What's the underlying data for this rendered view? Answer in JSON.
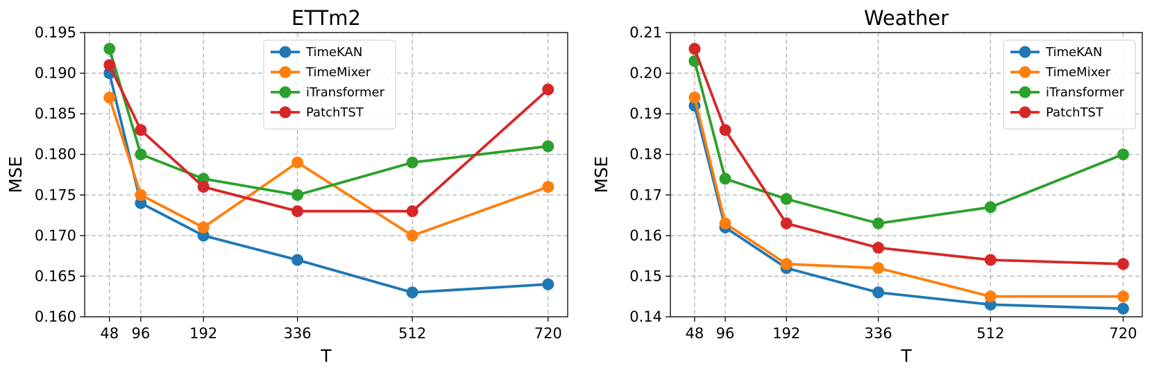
{
  "chart_data": [
    {
      "type": "line",
      "title": "ETTm2",
      "xlabel": "T",
      "ylabel": "MSE",
      "x": [
        48,
        96,
        192,
        336,
        512,
        720
      ],
      "xticks": [
        "48",
        "96",
        "192",
        "336",
        "512",
        "720"
      ],
      "xlim": [
        10,
        750
      ],
      "ylim": [
        0.16,
        0.195
      ],
      "yticks": [
        "0.160",
        "0.165",
        "0.170",
        "0.175",
        "0.180",
        "0.185",
        "0.190",
        "0.195"
      ],
      "grid": true,
      "legend_position": "top-center",
      "series": [
        {
          "name": "TimeKAN",
          "color": "#1f77b4",
          "values": [
            0.19,
            0.174,
            0.17,
            0.167,
            0.163,
            0.164
          ]
        },
        {
          "name": "TimeMixer",
          "color": "#ff7f0e",
          "values": [
            0.187,
            0.175,
            0.171,
            0.179,
            0.17,
            0.176
          ]
        },
        {
          "name": "iTransformer",
          "color": "#2ca02c",
          "values": [
            0.193,
            0.18,
            0.177,
            0.175,
            0.179,
            0.181
          ]
        },
        {
          "name": "PatchTST",
          "color": "#d62728",
          "values": [
            0.191,
            0.183,
            0.176,
            0.173,
            0.173,
            0.188
          ]
        }
      ]
    },
    {
      "type": "line",
      "title": "Weather",
      "xlabel": "T",
      "ylabel": "MSE",
      "x": [
        48,
        96,
        192,
        336,
        512,
        720
      ],
      "xticks": [
        "48",
        "96",
        "192",
        "336",
        "512",
        "720"
      ],
      "xlim": [
        10,
        750
      ],
      "ylim": [
        0.14,
        0.21
      ],
      "yticks": [
        "0.14",
        "0.15",
        "0.16",
        "0.17",
        "0.18",
        "0.19",
        "0.20",
        "0.21"
      ],
      "grid": true,
      "legend_position": "top-right",
      "series": [
        {
          "name": "TimeKAN",
          "color": "#1f77b4",
          "values": [
            0.192,
            0.162,
            0.152,
            0.146,
            0.143,
            0.142
          ]
        },
        {
          "name": "TimeMixer",
          "color": "#ff7f0e",
          "values": [
            0.194,
            0.163,
            0.153,
            0.152,
            0.145,
            0.145
          ]
        },
        {
          "name": "iTransformer",
          "color": "#2ca02c",
          "values": [
            0.203,
            0.174,
            0.169,
            0.163,
            0.167,
            0.18
          ]
        },
        {
          "name": "PatchTST",
          "color": "#d62728",
          "values": [
            0.206,
            0.186,
            0.163,
            0.157,
            0.154,
            0.153
          ]
        }
      ]
    }
  ]
}
